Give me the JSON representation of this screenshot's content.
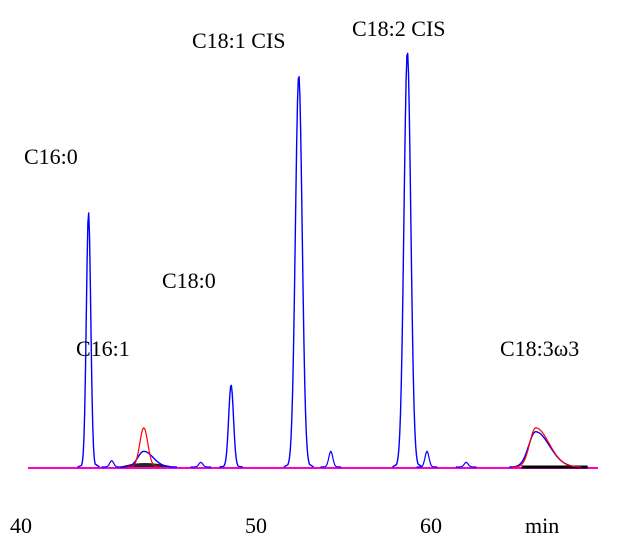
{
  "chart_data": {
    "type": "line",
    "xunit": "min",
    "xlim": [
      40,
      70
    ],
    "ylim": [
      0,
      100
    ],
    "x_ticks": [
      {
        "value": 40,
        "label": "40"
      },
      {
        "value": 50,
        "label": "50"
      },
      {
        "value": 60,
        "label": "60"
      }
    ],
    "xlabel": "min",
    "colors": {
      "trace": "#0000ff",
      "overlay": "#ff0000",
      "baseline": "#ff00cc",
      "fill": "#000000"
    },
    "peaks": [
      {
        "label": "C16:0",
        "x": 41.2,
        "height": 65
      },
      {
        "label": "C16:1",
        "x": 44.3,
        "height": 4
      },
      {
        "label": "C18:0",
        "x": 49.2,
        "height": 21
      },
      {
        "label": "C18:1 CIS",
        "x": 53.0,
        "height": 100
      },
      {
        "label": "C18:2 CIS",
        "x": 59.1,
        "height": 106
      },
      {
        "label": "C18:3ω3",
        "x": 66.3,
        "height": 9
      }
    ]
  }
}
